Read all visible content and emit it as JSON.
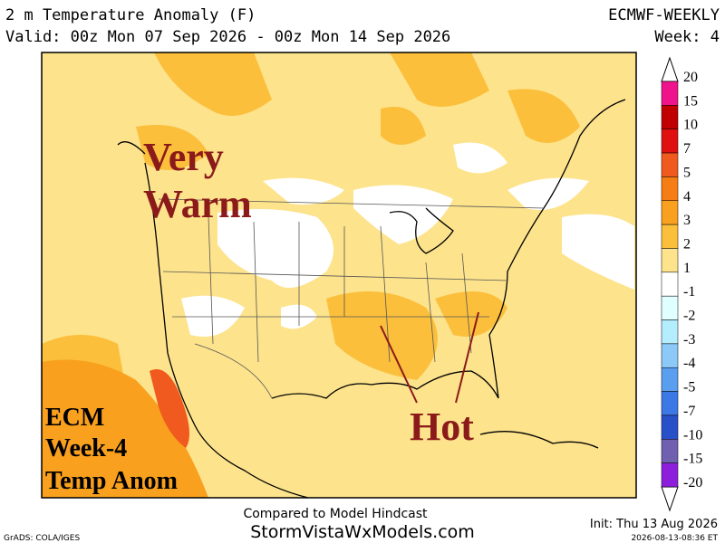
{
  "header": {
    "title": "2 m Temperature Anomaly (F)",
    "valid": "Valid: 00z Mon 07 Sep 2026 - 00z Mon 14 Sep 2026",
    "model": "ECMWF-WEEKLY",
    "week": "Week: 4"
  },
  "annotations": {
    "very_warm": [
      "Very",
      "Warm"
    ],
    "hot": "Hot",
    "label": [
      "ECM",
      "Week-4",
      "Temp Anom"
    ]
  },
  "colorbar": {
    "ticks": [
      20,
      15,
      10,
      7,
      5,
      4,
      3,
      2,
      1,
      -1,
      -2,
      -3,
      -4,
      -5,
      -7,
      -10,
      -15,
      -20
    ],
    "colors": [
      "#f0148c",
      "#c00000",
      "#e01010",
      "#f05a1e",
      "#f57d14",
      "#f9a01e",
      "#fbbf3c",
      "#fde38c",
      "#ffffff",
      "#e0ffff",
      "#b4eefe",
      "#8cc8f8",
      "#5a9ef0",
      "#3c78e6",
      "#2850c8",
      "#7060b0",
      "#8c1edc"
    ]
  },
  "footer": {
    "compared": "Compared to Model Hindcast",
    "site": "StormVistaWxModels.com",
    "init": "Init: Thu 13 Aug 2026",
    "grads": "GrADS: COLA/IGES",
    "stamp": "2026-08-13-08:36 ET"
  }
}
